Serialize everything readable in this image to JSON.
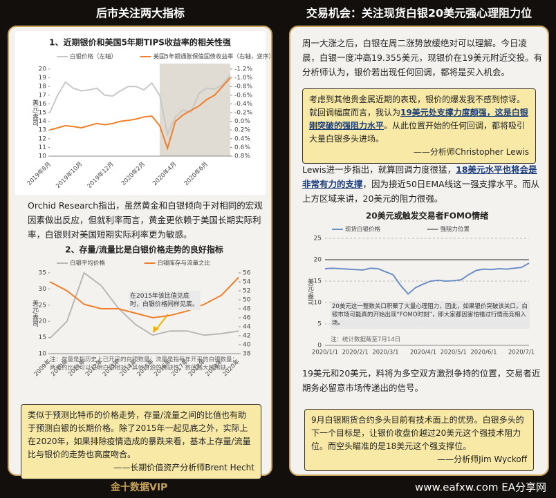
{
  "header": {
    "left_title": "后市关注两大指标",
    "right_title": "交易机会：关注现货白银20美元强心理阻力位"
  },
  "left": {
    "paragraph": "Orchid Research指出，虽然黄金和白银倾向于对相同的宏观因素做出反应，但就利率而言，黄金更依赖于美国长期实际利率，白银则对美国短期实际利率更为敏感。",
    "quote": "类似于预测比特币的价格走势，存量/流量之间的比值也有助于预测白银的长期价格。除了2015年一起见底之外，实际上在2020年，如果排除疫情造成的暴跌来看，基本上存量/流量比与银价的走势也高度吻合。",
    "quote_author": "——长期价值资产分析师Brent Hecht"
  },
  "right": {
    "paragraph1": "周一大涨之后，白银在周二涨势放缓绝对可以理解。今日凌晨，白银一度冲高19.355美元，现银价在19美元附近交投。有分析师认为，银价若出现任何回调，都将是买入机会。",
    "quote1": [
      "考虑到其他贵金属近期的表现，银价的爆发我不感到惊讶。就回调幅度而言，我认为",
      "19美元处支撑力度颇强，这是白银刚突破的强阻力水平",
      "。从此位置开始的任何回调，都将吸引大量白银多头进场。"
    ],
    "quote1_author": "——分析师Christopher Lewis",
    "paragraph2": [
      "Lewis进一步指出，就算回调力度很猛，",
      "18美元水平也将会是非常有力的支撑",
      "，因为接近50日EMA线这一强支撑水平。而从上方区域来讲，20美元的阻力很强。"
    ],
    "paragraph3": "19美元和20美元，料将为多空双方激烈争持的位置，交易者近期务必留意市场传递出的信号。",
    "quote2": "9月白银期货合约多头目前有技术面上的优势。白银多头的下一个目标是，让银价收盘价越过20美元这个强技术阻力位。而空头瞄准的是18美元这个强支撑位。",
    "quote2_author": "——分析师Jim Wyckoff"
  },
  "footer": {
    "brand": "金十数据VIP",
    "watermark": "www.eafxw.com  EA分享网"
  },
  "chart_data": [
    {
      "type": "line",
      "title": "1、近期银价和美国5年期TIPS收益率的相关性强",
      "y_label": "美元/盎司",
      "categories": [
        "2019年8月",
        null,
        null,
        null,
        "2019年10月",
        null,
        null,
        null,
        "2019年12月",
        null,
        null,
        null,
        "2020年2月",
        null,
        null,
        null,
        "2020年4月",
        null,
        null,
        null,
        "2020年6月",
        null,
        null,
        null
      ],
      "series": [
        {
          "name": "白银价格（左轴）",
          "color": "#c8c8c8",
          "values": [
            15.0,
            17.0,
            18.5,
            17.8,
            17.5,
            17.6,
            17.8,
            17.0,
            16.9,
            17.5,
            18.0,
            18.0,
            17.6,
            18.4,
            17.0,
            12.5,
            14.5,
            15.3,
            15.0,
            17.2,
            17.8,
            17.7,
            18.2,
            19.3
          ]
        },
        {
          "name": "美国5年期通胀保值国债收益率（右轴，逆序）",
          "color": "#f07f2a",
          "axis": "y2",
          "values": [
            0.2,
            0.15,
            0.1,
            0.12,
            0.15,
            0.1,
            0.05,
            0.08,
            0.05,
            0.0,
            -0.02,
            -0.05,
            -0.1,
            -0.12,
            0.1,
            0.62,
            0.0,
            -0.15,
            -0.25,
            -0.35,
            -0.5,
            -0.6,
            -0.8,
            -1.0
          ]
        }
      ],
      "ylim": [
        10,
        20
      ],
      "yticks": [
        10,
        11,
        12,
        13,
        14,
        15,
        16,
        17,
        18,
        19,
        20
      ],
      "y2lim": [
        0.8,
        -1.2
      ],
      "y2ticks": [
        {
          "value": 0.8,
          "label": "0.8%"
        },
        {
          "value": 0.6,
          "label": "0.6%"
        },
        {
          "value": 0.4,
          "label": "0.4%"
        },
        {
          "value": 0.2,
          "label": "0.2%"
        },
        {
          "value": 0.0,
          "label": "0.0%"
        },
        {
          "value": -0.2,
          "label": "-0.2%"
        },
        {
          "value": -0.4,
          "label": "-0.4%"
        },
        {
          "value": -0.6,
          "label": "-0.6%"
        },
        {
          "value": -0.8,
          "label": "-0.8%"
        },
        {
          "value": -1.0,
          "label": "-1.0%"
        },
        {
          "value": -1.2,
          "label": "-1.2%"
        }
      ],
      "grid": false
    },
    {
      "type": "line",
      "title": "2、存量/流量比是白银价格走势的良好指标",
      "y_label": "美元/盎司",
      "categories": [
        "2009年",
        "2010年",
        "2011年",
        "2012年",
        "2013年",
        "2014年",
        "2015年",
        "2016年",
        "2017年",
        "2018年",
        "2019年",
        "2020年"
      ],
      "series": [
        {
          "name": "白银平均价格",
          "color": "#b8b8b8",
          "values": [
            14.7,
            20.0,
            35.0,
            31.0,
            24.0,
            19.0,
            15.7,
            17.0,
            17.0,
            15.7,
            16.2,
            17.0
          ]
        },
        {
          "name": "白银库存与流量之比",
          "color": "#f07f2a",
          "axis": "y2",
          "values": [
            54,
            52,
            49,
            48,
            48,
            47,
            46,
            46.5,
            47.5,
            49,
            51,
            55
          ]
        }
      ],
      "ylim": [
        10,
        35
      ],
      "yticks": [
        10,
        15,
        20,
        25,
        30,
        35
      ],
      "y2lim": [
        38,
        56
      ],
      "y2ticks": [
        38,
        40,
        42,
        44,
        46,
        48,
        50,
        52,
        54,
        56
      ],
      "grid": false,
      "annotation": "在2015年该比值见底时，白银价格同样见底。",
      "note": "注：存量是指历史上已开采的白银数量；流量是指每年开采的白银数量；两者的比值可以说明白银相对于其他资源的稀缺性，数值越大越稀缺。"
    },
    {
      "type": "line",
      "title": "20美元或触发交易者FOMO情绪",
      "y_label": "美元/盎司",
      "categories": [
        "2020/1/1",
        null,
        null,
        null,
        "2020/2/1",
        null,
        null,
        null,
        "2020/3/1",
        null,
        null,
        null,
        null,
        "2020/4/1",
        null,
        null,
        null,
        "2020/5/1",
        null,
        null,
        null,
        "2020/6/1",
        null,
        null,
        null,
        null,
        "2020/7/1",
        null
      ],
      "series": [
        {
          "name": "现货白银价格",
          "color": "#6a8fc8",
          "values": [
            17.9,
            18.0,
            17.9,
            17.8,
            17.7,
            17.6,
            18.0,
            17.9,
            17.2,
            16.5,
            14.0,
            12.0,
            13.5,
            14.3,
            15.0,
            15.2,
            15.0,
            15.1,
            15.3,
            16.5,
            17.5,
            17.8,
            17.7,
            17.9,
            17.8,
            18.0,
            18.2,
            19.2
          ]
        },
        {
          "name": "强阻力位置",
          "color": "#8c8c8c",
          "values": [
            20,
            20,
            20,
            20,
            20,
            20,
            20,
            20,
            20,
            20,
            20,
            20,
            20,
            20,
            20,
            20,
            20,
            20,
            20,
            20,
            20,
            20,
            20,
            20,
            20,
            20,
            20,
            20
          ]
        }
      ],
      "ylim": [
        0,
        25
      ],
      "yticks": [
        0,
        5,
        10,
        15,
        20,
        25
      ],
      "grid": true,
      "annotation": "20美元这一整数关口积聚了大量心理阻力，因此，如果银价突破该关口，白银市场可能真的开始出现“FOMO时刻”，即大家都因害怕错过行情而竞相入场。",
      "note": "注：统计数据截至7月14日"
    }
  ]
}
